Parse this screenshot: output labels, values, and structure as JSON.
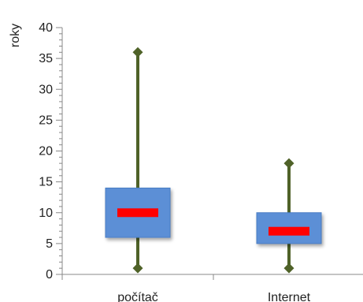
{
  "chart_data": {
    "type": "boxplot",
    "ylabel": "roky",
    "ylim": [
      0,
      40
    ],
    "yticks": [
      "0",
      "5",
      "10",
      "15",
      "20",
      "25",
      "30",
      "35",
      "40"
    ],
    "minor_ticks_per_major": 5,
    "grid": false,
    "categories": [
      "počítač",
      "Internet"
    ],
    "series": [
      {
        "min": 1,
        "q1": 6,
        "median": 10,
        "q3": 14,
        "max": 36
      },
      {
        "min": 1,
        "q1": 5,
        "median": 7,
        "q3": 10,
        "max": 18
      }
    ],
    "colors": {
      "box_fill": "#5b8fd6",
      "box_stroke": "#4a7dc4",
      "median": "#ff0000",
      "whisker": "#4f6228",
      "axis": "#888888"
    }
  }
}
